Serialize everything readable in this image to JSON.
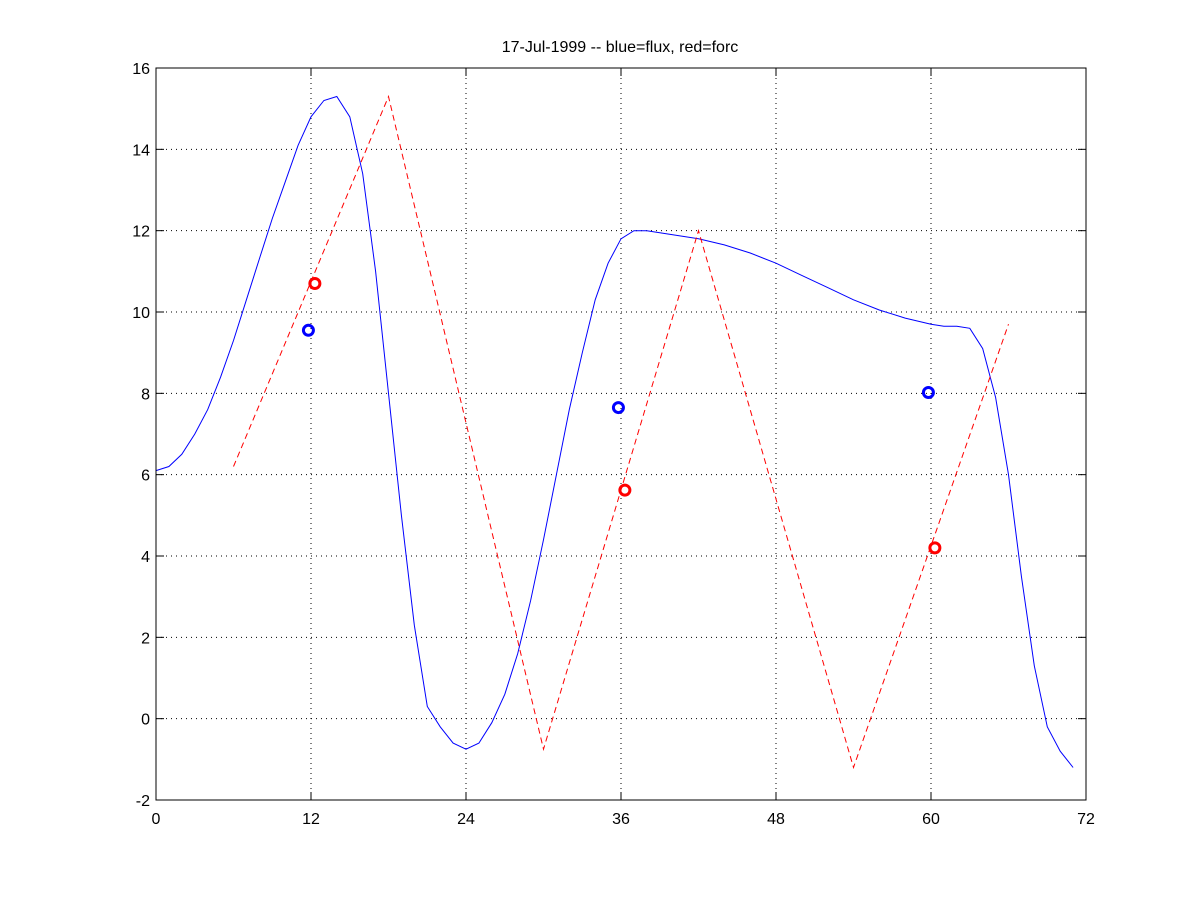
{
  "chart_data": {
    "type": "line",
    "title": "17-Jul-1999 -- blue=flux, red=forc",
    "xlabel": "",
    "ylabel": "",
    "xlim": [
      0,
      72
    ],
    "ylim": [
      -2,
      16
    ],
    "xticks": [
      0,
      12,
      24,
      36,
      48,
      60,
      72
    ],
    "yticks": [
      -2,
      0,
      2,
      4,
      6,
      8,
      10,
      12,
      14,
      16
    ],
    "grid": true,
    "legend": "none",
    "series": [
      {
        "color": "#0000ff",
        "style": "solid",
        "x": [
          0,
          1,
          2,
          3,
          4,
          5,
          6,
          7,
          8,
          9,
          10,
          11,
          12,
          13,
          14,
          15,
          16,
          17,
          18,
          19,
          20,
          21,
          22,
          23,
          24,
          25,
          26,
          27,
          28,
          29,
          30,
          31,
          32,
          33,
          34,
          35,
          36,
          37,
          38,
          39,
          40,
          42,
          44,
          46,
          48,
          50,
          52,
          54,
          56,
          58,
          60,
          61,
          62,
          63,
          64,
          65,
          66,
          67,
          68,
          69,
          70,
          71
        ],
        "y": [
          6.1,
          6.2,
          6.5,
          7.0,
          7.6,
          8.4,
          9.3,
          10.3,
          11.3,
          12.3,
          13.2,
          14.1,
          14.8,
          15.2,
          15.3,
          14.8,
          13.4,
          11.0,
          8.0,
          5.0,
          2.3,
          0.3,
          -0.2,
          -0.6,
          -0.75,
          -0.6,
          -0.1,
          0.6,
          1.6,
          2.9,
          4.4,
          6.0,
          7.6,
          9.0,
          10.3,
          11.2,
          11.8,
          12.0,
          12.0,
          11.95,
          11.9,
          11.8,
          11.65,
          11.45,
          11.2,
          10.9,
          10.6,
          10.3,
          10.05,
          9.85,
          9.7,
          9.65,
          9.65,
          9.6,
          9.1,
          7.9,
          6.0,
          3.5,
          1.3,
          -0.2,
          -0.8,
          -1.2
        ]
      },
      {
        "color": "#ff0000",
        "style": "dashed",
        "x": [
          6,
          18,
          30,
          42,
          54,
          66
        ],
        "y": [
          6.2,
          15.3,
          -0.75,
          12.0,
          -1.2,
          9.7
        ]
      }
    ],
    "markers": [
      {
        "color": "#0000ff",
        "x": 11.8,
        "y": 9.55
      },
      {
        "color": "#0000ff",
        "x": 35.8,
        "y": 7.65
      },
      {
        "color": "#0000ff",
        "x": 59.8,
        "y": 8.02
      },
      {
        "color": "#ff0000",
        "x": 12.3,
        "y": 10.7
      },
      {
        "color": "#ff0000",
        "x": 36.3,
        "y": 5.62
      },
      {
        "color": "#ff0000",
        "x": 60.3,
        "y": 4.2
      }
    ]
  }
}
